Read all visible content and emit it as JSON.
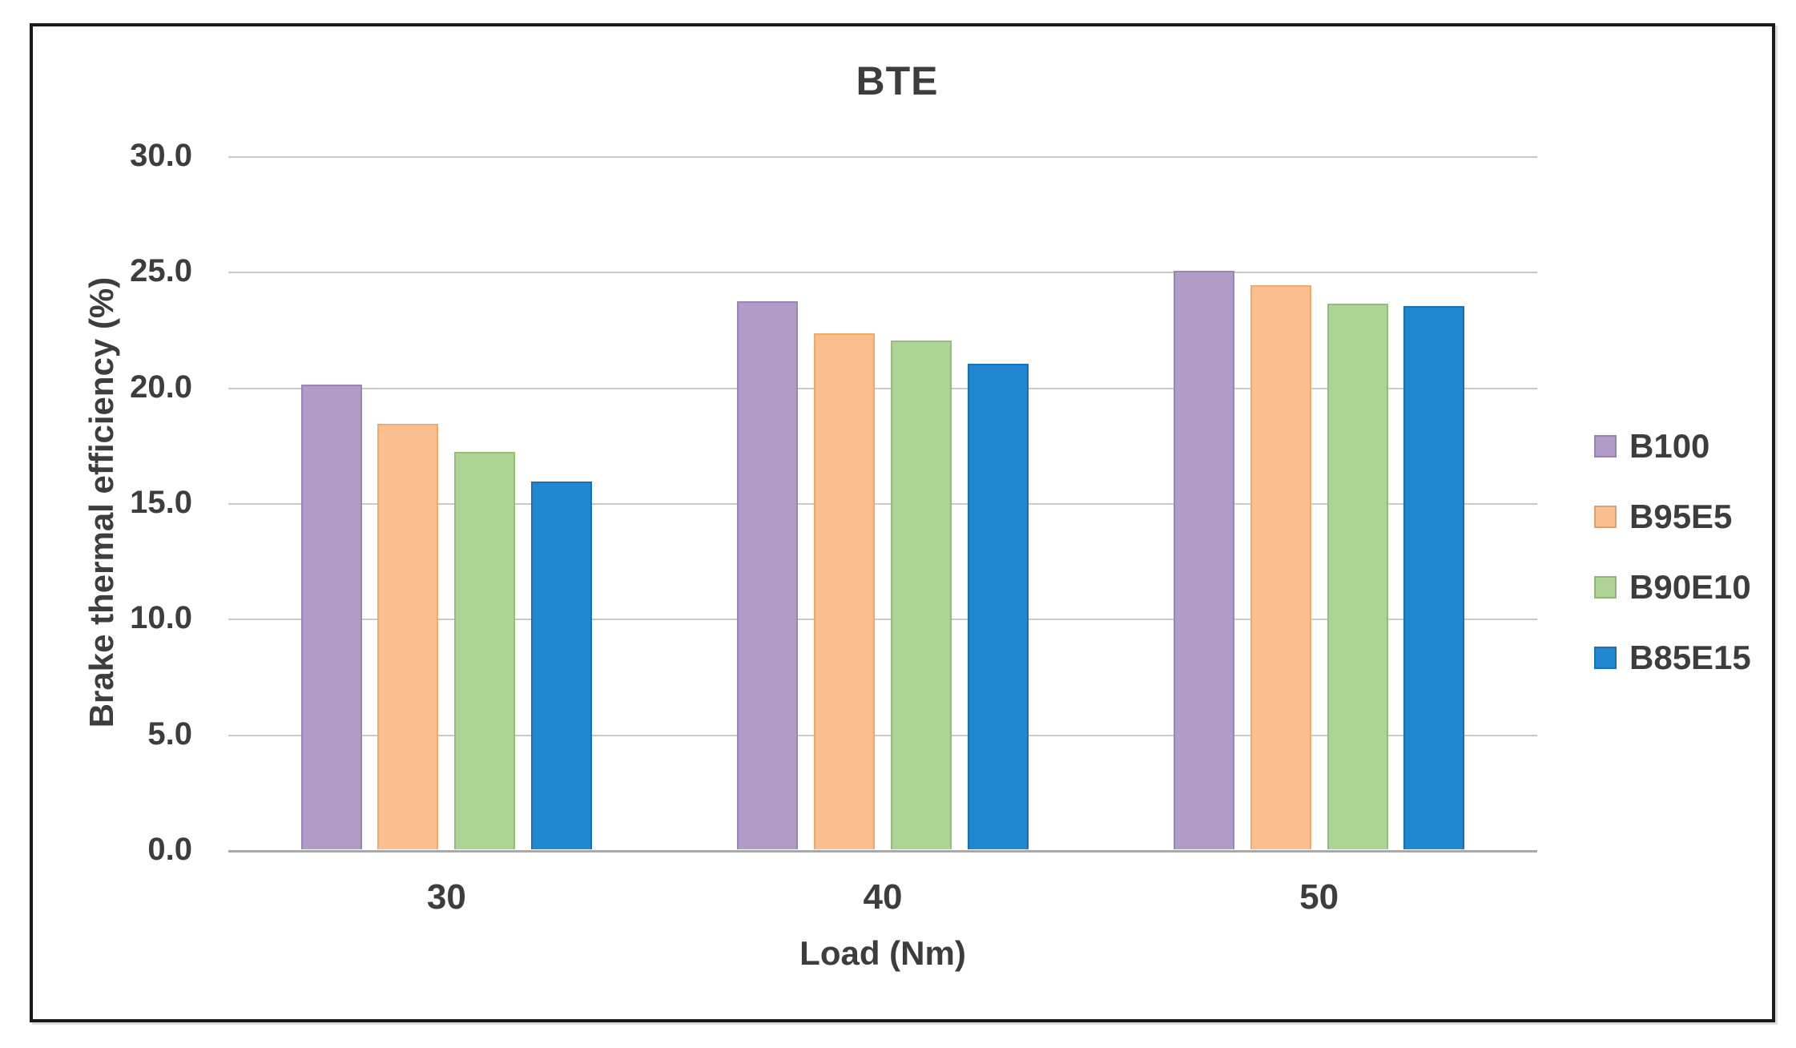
{
  "title": "BTE",
  "axes": {
    "y_title": "Brake thermal efficiency (%)",
    "x_title": "Load (Nm)"
  },
  "chart_data": {
    "type": "bar",
    "title": "BTE",
    "xlabel": "Load (Nm)",
    "ylabel": "Brake thermal efficiency (%)",
    "categories": [
      "30",
      "40",
      "50"
    ],
    "series": [
      {
        "name": "B100",
        "color": "#B19CC7",
        "border_color": "#9A85B5",
        "values": [
          20.1,
          23.7,
          25.0
        ]
      },
      {
        "name": "B95E5",
        "color": "#FBBF8F",
        "border_color": "#EFA96B",
        "values": [
          18.4,
          22.3,
          24.4
        ]
      },
      {
        "name": "B90E10",
        "color": "#AFD295",
        "border_color": "#93BE77",
        "values": [
          17.2,
          22.0,
          23.6
        ]
      },
      {
        "name": "B85E15",
        "color": "#2287D1",
        "border_color": "#1A6FB5",
        "values": [
          15.9,
          21.0,
          23.5
        ]
      }
    ],
    "ylim": [
      0,
      30
    ],
    "yticks": [
      {
        "label": "0.0",
        "value": 0
      },
      {
        "label": "5.0",
        "value": 5
      },
      {
        "label": "10.0",
        "value": 10
      },
      {
        "label": "15.0",
        "value": 15
      },
      {
        "label": "20.0",
        "value": 20
      },
      {
        "label": "25.0",
        "value": 25
      },
      {
        "label": "30.0",
        "value": 30
      }
    ],
    "grid": true,
    "legend_position": "right"
  },
  "colors": {
    "grid": "#C9C9C9",
    "baseline": "#A9A9A9",
    "text": "#3D3D3D",
    "figure_border": "#1A1A1A",
    "background": "#FFFFFF"
  }
}
